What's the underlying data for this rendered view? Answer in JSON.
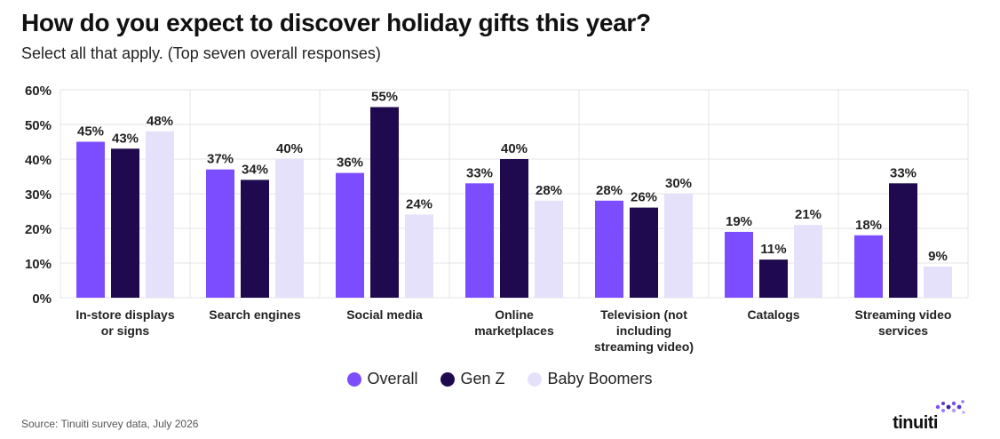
{
  "title": "How do you expect to discover holiday gifts this year?",
  "subtitle": "Select all that apply. (Top seven overall responses)",
  "source": "Source: Tinuiti survey data, July 2026",
  "brand": "tinuiti",
  "colors": {
    "Overall": "#7c4dff",
    "Gen Z": "#200a4f",
    "Baby Boomers": "#e6e1fb",
    "grid": "#e4e4e4",
    "logo_dots": "#7c4dff"
  },
  "chart_data": {
    "type": "bar",
    "title": "How do you expect to discover holiday gifts this year?",
    "xlabel": "",
    "ylabel": "",
    "ylim": [
      0,
      60
    ],
    "yticks": [
      "0%",
      "10%",
      "20%",
      "30%",
      "40%",
      "50%",
      "60%"
    ],
    "grid": true,
    "legend_position": "bottom",
    "categories": [
      [
        "In-store displays",
        "or signs"
      ],
      [
        "Search engines"
      ],
      [
        "Social media"
      ],
      [
        "Online",
        "marketplaces"
      ],
      [
        "Television (not",
        "including",
        "streaming video)"
      ],
      [
        "Catalogs"
      ],
      [
        "Streaming video",
        "services"
      ]
    ],
    "series": [
      {
        "name": "Overall",
        "values": [
          45,
          37,
          36,
          33,
          28,
          19,
          18
        ]
      },
      {
        "name": "Gen Z",
        "values": [
          43,
          34,
          55,
          40,
          26,
          11,
          33
        ]
      },
      {
        "name": "Baby Boomers",
        "values": [
          48,
          40,
          24,
          28,
          30,
          21,
          9
        ]
      }
    ],
    "value_suffix": "%"
  }
}
